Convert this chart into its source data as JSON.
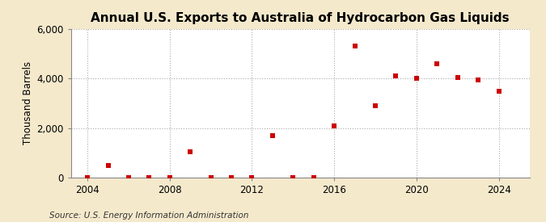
{
  "title": "Annual U.S. Exports to Australia of Hydrocarbon Gas Liquids",
  "ylabel": "Thousand Barrels",
  "source": "Source: U.S. Energy Information Administration",
  "years": [
    2004,
    2005,
    2006,
    2007,
    2008,
    2009,
    2010,
    2011,
    2012,
    2013,
    2014,
    2015,
    2016,
    2017,
    2018,
    2019,
    2020,
    2021,
    2022,
    2023,
    2024
  ],
  "values": [
    5,
    500,
    5,
    5,
    5,
    1050,
    5,
    5,
    5,
    1700,
    5,
    5,
    2100,
    5300,
    2900,
    4100,
    4000,
    4600,
    4050,
    3950,
    3500
  ],
  "marker_color": "#cc0000",
  "background_color": "#f5e9cc",
  "plot_bg_color": "#ffffff",
  "grid_color": "#aaaaaa",
  "ylim": [
    0,
    6000
  ],
  "yticks": [
    0,
    2000,
    4000,
    6000
  ],
  "xlim": [
    2003.2,
    2025.5
  ],
  "xticks": [
    2004,
    2008,
    2012,
    2016,
    2020,
    2024
  ],
  "title_fontsize": 11,
  "axis_fontsize": 8.5,
  "source_fontsize": 7.5
}
